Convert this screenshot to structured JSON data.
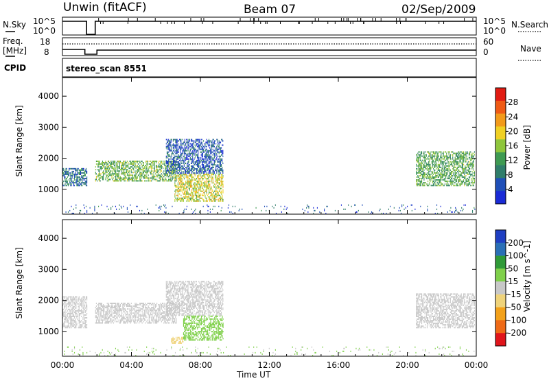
{
  "header": {
    "radar": "Unwin (fitACF)",
    "beam": "Beam 07",
    "date": "02/Sep/2009"
  },
  "noise_panel": {
    "left_label": "N.Sky",
    "right_label": "N.Search",
    "left_ticks": [
      "10^5",
      "10^0"
    ],
    "right_ticks": [
      "10^5",
      "10^0"
    ]
  },
  "freq_panel": {
    "left_label": "Freq.",
    "left_unit": "[MHz]",
    "right_label": "Nave",
    "left_ticks": [
      "18",
      "8"
    ],
    "right_ticks": [
      "60",
      "0"
    ]
  },
  "cpid_panel": {
    "label": "CPID",
    "value": "stereo_scan 8551"
  },
  "colors": {
    "power": [
      "#1a2bd6",
      "#1f4fb8",
      "#2f7d6a",
      "#3e9a52",
      "#8fc63c",
      "#f0d023",
      "#f29a1a",
      "#ef5a14",
      "#e11b12"
    ],
    "velocity": [
      "#e0151b",
      "#ef6a16",
      "#f3a11a",
      "#efd37a",
      "#c8c8c8",
      "#7fd04a",
      "#2f9a37",
      "#2a6fb6",
      "#1f3fc2"
    ]
  },
  "chart_data": [
    {
      "type": "heatmap",
      "parameter": "Power",
      "ylabel": "Slant Range [km]",
      "y_ticks": [
        1000,
        2000,
        3000,
        4000
      ],
      "ylim": [
        200,
        4600
      ],
      "x_ticks": [
        "00:00",
        "04:00",
        "08:00",
        "12:00",
        "16:00",
        "20:00",
        "00:00"
      ],
      "xlim_hours": [
        0,
        24
      ],
      "colorbar": {
        "label": "Power [dB]",
        "range": [
          0,
          32
        ],
        "ticks": [
          4,
          8,
          12,
          16,
          20,
          24,
          28
        ]
      },
      "regions": [
        {
          "t": [
            0.0,
            1.4
          ],
          "range_km": [
            1100,
            1650
          ],
          "value_db": 8
        },
        {
          "t": [
            1.9,
            6.6
          ],
          "range_km": [
            1250,
            1900
          ],
          "value_db": 14
        },
        {
          "t": [
            6.0,
            9.3
          ],
          "range_km": [
            1500,
            2600
          ],
          "value_db": 6
        },
        {
          "t": [
            6.5,
            9.3
          ],
          "range_km": [
            600,
            1500
          ],
          "value_db": 18
        },
        {
          "t": [
            20.5,
            23.9
          ],
          "range_km": [
            1100,
            2200
          ],
          "value_db": 13
        },
        {
          "t": [
            0.0,
            24.0
          ],
          "range_km": [
            200,
            500
          ],
          "value_db": 6
        }
      ]
    },
    {
      "type": "heatmap",
      "parameter": "Velocity",
      "ylabel": "Slant Range [km]",
      "y_ticks": [
        1000,
        2000,
        3000,
        4000
      ],
      "ylim": [
        200,
        4600
      ],
      "x_ticks": [
        "00:00",
        "04:00",
        "08:00",
        "12:00",
        "16:00",
        "20:00",
        "00:00"
      ],
      "xlabel": "Time UT",
      "xlim_hours": [
        0,
        24
      ],
      "colorbar": {
        "label": "Velocity [m s^-1]",
        "range": [
          -250,
          250
        ],
        "ticks": [
          "200",
          "100",
          "50",
          "15",
          "-15",
          "-50",
          "-100",
          "-200"
        ]
      },
      "regions": [
        {
          "t": [
            0.0,
            1.4
          ],
          "range_km": [
            1100,
            2100
          ],
          "value_ms": 0
        },
        {
          "t": [
            1.9,
            6.6
          ],
          "range_km": [
            1250,
            1900
          ],
          "value_ms": 0
        },
        {
          "t": [
            6.0,
            9.3
          ],
          "range_km": [
            1500,
            2600
          ],
          "value_ms": 0
        },
        {
          "t": [
            6.3,
            7.0
          ],
          "range_km": [
            600,
            800
          ],
          "value_ms": -60
        },
        {
          "t": [
            7.0,
            9.3
          ],
          "range_km": [
            700,
            1500
          ],
          "value_ms": 60
        },
        {
          "t": [
            20.5,
            23.9
          ],
          "range_km": [
            1100,
            2200
          ],
          "value_ms": 0
        },
        {
          "t": [
            0.0,
            24.0
          ],
          "range_km": [
            200,
            500
          ],
          "value_ms": 30
        }
      ]
    }
  ]
}
